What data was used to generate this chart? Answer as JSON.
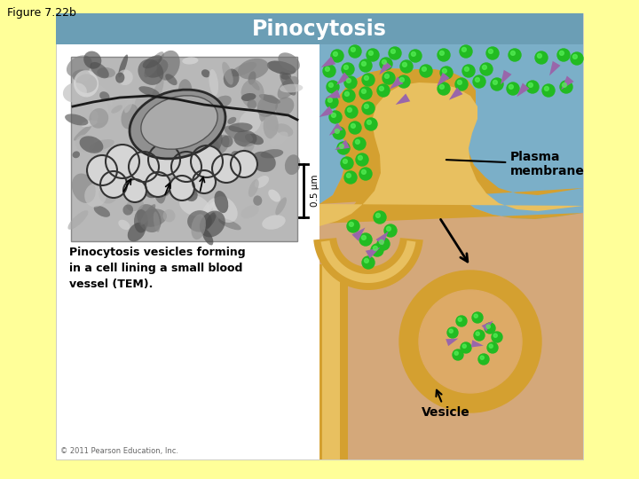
{
  "title": "Figure 7.22b",
  "background_color": "#FFFF99",
  "header_bg_color": "#6B9EB5",
  "header_text": "Pinocytosis",
  "header_text_color": "#FFFFFF",
  "caption_text": "Pinocytosis vesicles forming\nin a cell lining a small blood\nvessel (TEM).",
  "scale_bar_text": "0.5 μm",
  "plasma_membrane_label": "Plasma\nmembrane",
  "vesicle_label": "Vesicle",
  "membrane_color": "#D4A030",
  "membrane_light": "#E8C060",
  "extracellular_color": "#7BAFC8",
  "cell_interior_color": "#D4A87A",
  "vesicle_interior": "#DDAA66",
  "green_dot_color": "#22BB22",
  "purple_color": "#9966AA",
  "copyright_text": "© 2011 Pearson Education, Inc."
}
